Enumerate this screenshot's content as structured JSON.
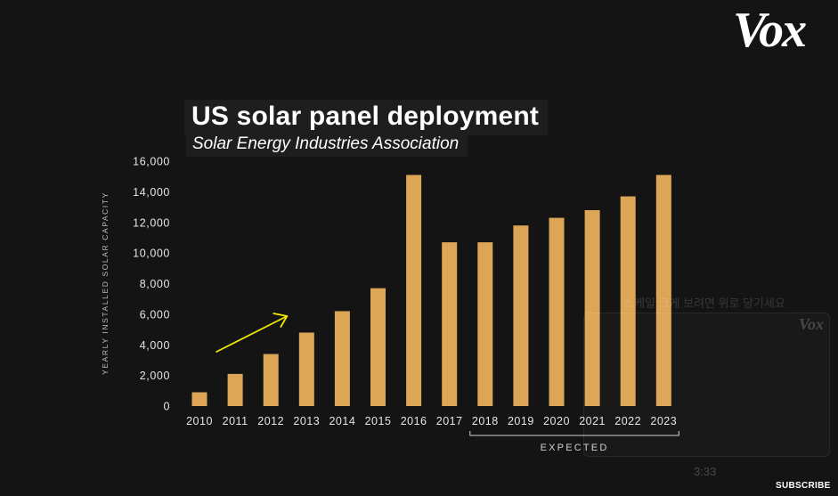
{
  "brand": {
    "logo": "Vox"
  },
  "overlay": {
    "pull_hint": "스케일 크게 보려면 위로 당기세요",
    "mini_logo": "Vox",
    "timestamp": "3:33",
    "subscribe": "SUBSCRIBE"
  },
  "colors": {
    "bar": "#dda656",
    "arrow": "#f2e600",
    "background": "#141414"
  },
  "chart_data": {
    "type": "bar",
    "title": "US solar panel deployment",
    "subtitle": "Solar Energy Industries Association",
    "xlabel": "",
    "ylabel": "YEARLY INSTALLED SOLAR CAPACITY",
    "ylim": [
      0,
      16000
    ],
    "yticks": [
      "0",
      "2,000",
      "4,000",
      "6,000",
      "8,000",
      "10,000",
      "12,000",
      "14,000",
      "16,000"
    ],
    "grid": false,
    "categories": [
      "2010",
      "2011",
      "2012",
      "2013",
      "2014",
      "2015",
      "2016",
      "2017",
      "2018",
      "2019",
      "2020",
      "2021",
      "2022",
      "2023"
    ],
    "values": [
      900,
      2100,
      3400,
      4800,
      6200,
      7700,
      15100,
      10700,
      10700,
      11800,
      12300,
      12800,
      13700,
      15100
    ],
    "annotations": [
      {
        "type": "arrow",
        "from_category": "2011",
        "to_category": "2013"
      },
      {
        "type": "bracket",
        "text": "EXPECTED",
        "from_category": "2018",
        "to_category": "2023"
      }
    ]
  }
}
